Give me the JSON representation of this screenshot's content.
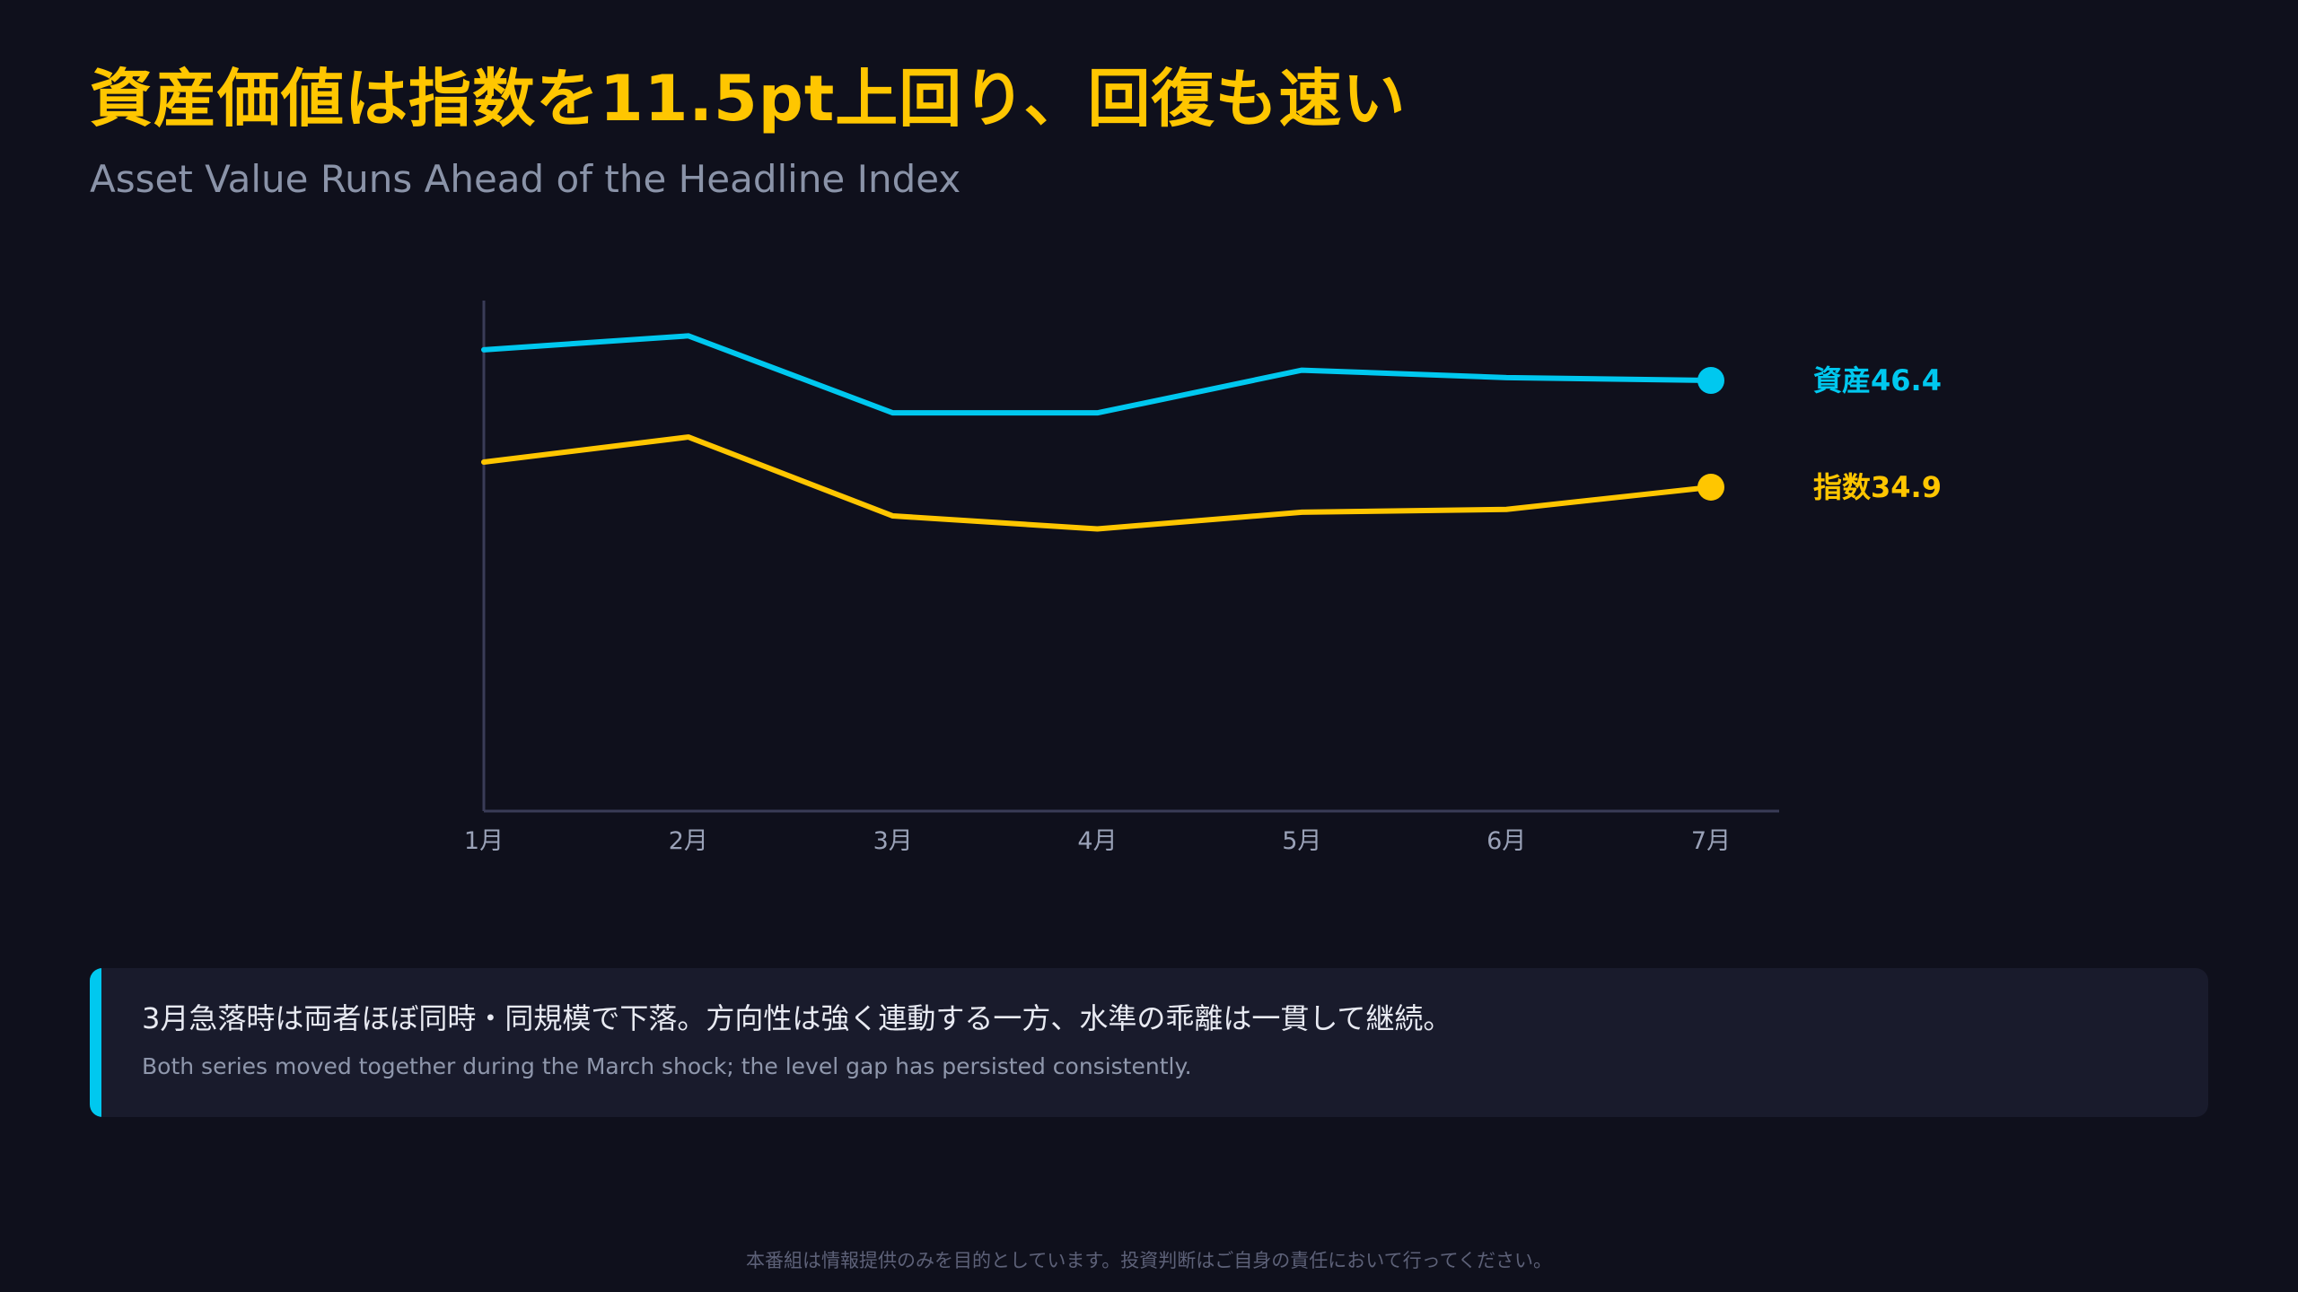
{
  "header": {
    "title": "資産価値は指数を11.5pt上回り、回復も速い",
    "subtitle": "Asset Value Runs Ahead of the Headline Index"
  },
  "chart_data": {
    "type": "line",
    "categories": [
      "1月",
      "2月",
      "3月",
      "4月",
      "5月",
      "6月",
      "7月"
    ],
    "ylim": [
      0,
      55
    ],
    "grid": false,
    "series": [
      {
        "name": "資産",
        "color": "#00c8ef",
        "values": [
          49.7,
          51.2,
          42.9,
          42.9,
          47.5,
          46.7,
          46.4
        ],
        "end_label": "資産46.4"
      },
      {
        "name": "指数",
        "color": "#ffc600",
        "values": [
          37.6,
          40.3,
          31.8,
          30.4,
          32.2,
          32.5,
          34.9
        ],
        "end_label": "指数34.9"
      }
    ]
  },
  "note": {
    "main": "3月急落時は両者ほぼ同時・同規模で下落。方向性は強く連動する一方、水準の乖離は一貫して継続。",
    "sub": "Both series moved together during the March shock; the level gap has persisted consistently."
  },
  "footer": {
    "disclaimer": "本番組は情報提供のみを目的としています。投資判断はご自身の責任において行ってください。"
  },
  "colors": {
    "background": "#0f101c",
    "title": "#ffc600",
    "accent": "#00c8ef",
    "card": "#191b2c"
  }
}
